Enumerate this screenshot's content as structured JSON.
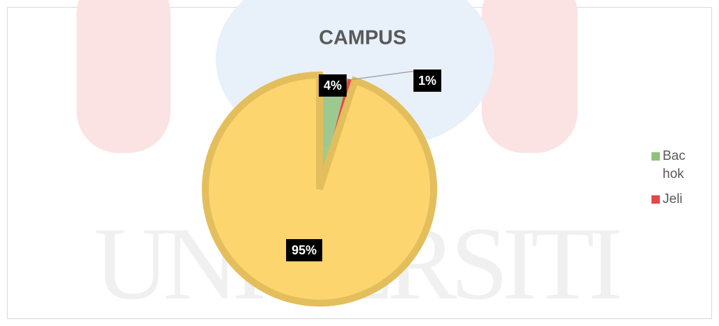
{
  "chart_data": {
    "type": "pie",
    "title": "CAMPUS",
    "watermark": "UNIVERSITI",
    "categories": [
      "Bachok",
      "Jeli",
      null
    ],
    "values": [
      4,
      1,
      95
    ],
    "value_labels": [
      "4%",
      "1%",
      "95%"
    ],
    "colors": [
      "#8fc27c",
      "#e2474b",
      "#fdd56e"
    ],
    "legend": "right"
  }
}
